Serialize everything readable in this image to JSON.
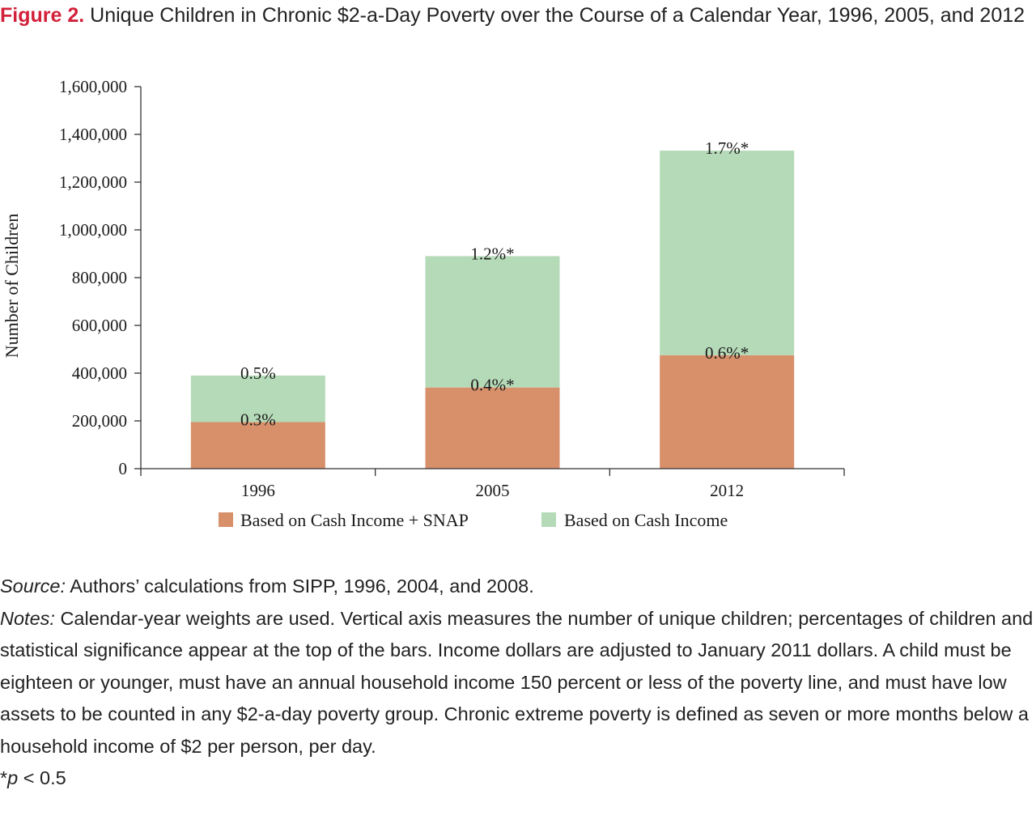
{
  "caption": {
    "label": "Figure 2.",
    "text": "Unique Children in Chronic $2-a-Day Poverty over the Course of a Calendar Year, 1996, 2005, and 2012"
  },
  "chart_data": {
    "type": "bar",
    "stacked": true,
    "categories": [
      "1996",
      "2005",
      "2012"
    ],
    "series": [
      {
        "name": "Based on Cash Income + SNAP",
        "color": "#d8906b",
        "values": [
          195000,
          340000,
          475000
        ],
        "labels": [
          "0.3%",
          "0.4%*",
          "0.6%*"
        ]
      },
      {
        "name": "Based on Cash Income",
        "color": "#b5dab8",
        "values": [
          195000,
          550000,
          857000
        ],
        "labels": [
          "0.5%",
          "1.2%*",
          "1.7%*"
        ]
      }
    ],
    "ylabel": "Number of Children",
    "xlabel": "",
    "ylim": [
      0,
      1600000
    ],
    "yticks": [
      0,
      200000,
      400000,
      600000,
      800000,
      1000000,
      1200000,
      1400000,
      1600000
    ],
    "ytick_labels": [
      "0",
      "200,000",
      "400,000",
      "600,000",
      "800,000",
      "1,000,000",
      "1,200,000",
      "1,400,000",
      "1,600,000"
    ],
    "legend_position": "bottom",
    "grid": false
  },
  "notes": {
    "source_label": "Source:",
    "source_text": "Authors’ calculations from SIPP, 1996, 2004, and 2008.",
    "notes_label": "Notes:",
    "notes_text": "Calendar-year weights are used. Vertical axis measures the number of unique children; percentages of children and statistical significance appear at the top of the bars. Income dollars are adjusted to January 2011 dollars. A child must be eighteen or younger, must have an annual household income 150 percent or less of the poverty line, and must have low assets to be counted in any $2-a-day poverty group. Chronic extreme poverty is defined as seven or more months below a household income of $2 per person, per day.",
    "signif_p": "p",
    "signif_rest": " < 0.5",
    "signif_star": "*"
  }
}
